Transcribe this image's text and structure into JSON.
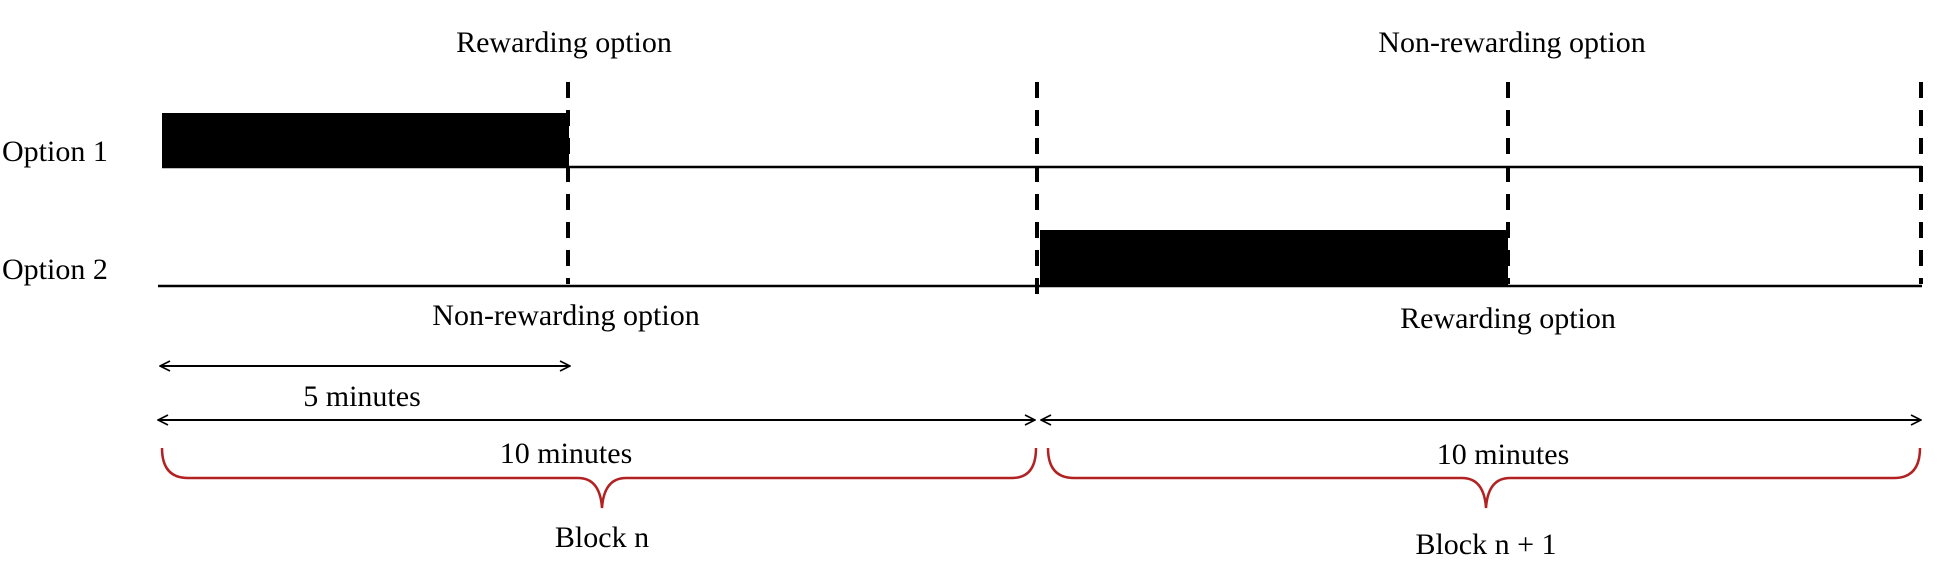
{
  "diagram": {
    "rows": [
      {
        "label": "Option 1"
      },
      {
        "label": "Option 2"
      }
    ],
    "block_n": {
      "top_label": "Rewarding option",
      "bottom_label": "Non-rewarding option",
      "duration_label": "10 minutes",
      "block_label": "Block n"
    },
    "block_n1": {
      "top_label": "Non-rewarding option",
      "bottom_label": "Rewarding option",
      "duration_label": "10 minutes",
      "block_label": "Block n + 1"
    },
    "half_duration_label": "5 minutes",
    "colors": {
      "ink": "#000000",
      "brace": "#b22222",
      "background": "#ffffff"
    }
  }
}
